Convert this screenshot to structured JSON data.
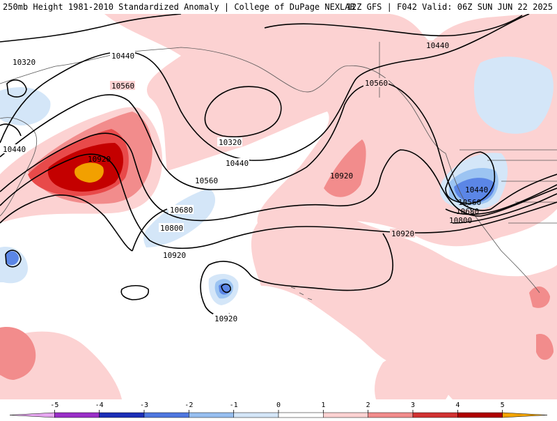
{
  "header": {
    "left_title": "250mb Height 1981-2010 Standardized Anomaly | College of DuPage NEXLAB",
    "right_title": "12Z GFS | F042 Valid: 06Z SUN JUN 22 2025"
  },
  "colors": {
    "ocean_neutral": "#ffffff",
    "pos1": "#fcd2d2",
    "pos2": "#f78a8a",
    "pos3": "#e84a4a",
    "pos4": "#c40000",
    "pos5": "#f2a000",
    "neg1": "#cde3f7",
    "neg2": "#9cc4f2",
    "neg3": "#5b86e6",
    "neg4": "#2140c8",
    "neg5": "#7a16b8",
    "contour": "#000000",
    "coast": "#444444"
  },
  "contour_labels": [
    {
      "name": "label-10320-nw",
      "text": "10320"
    },
    {
      "name": "label-10440-nw-top",
      "text": "10440"
    },
    {
      "name": "label-10440-nw-left",
      "text": "10440"
    },
    {
      "name": "label-10560-nw",
      "text": "10560"
    },
    {
      "name": "label-10920-jet",
      "text": "10920"
    },
    {
      "name": "label-10320-center",
      "text": "10320"
    },
    {
      "name": "label-10440-center",
      "text": "10440"
    },
    {
      "name": "label-10560-center",
      "text": "10560"
    },
    {
      "name": "label-10680-center",
      "text": "10680"
    },
    {
      "name": "label-10800-center",
      "text": "10800"
    },
    {
      "name": "label-10920-center",
      "text": "10920"
    },
    {
      "name": "label-10920-south",
      "text": "10920"
    },
    {
      "name": "label-10920-mid",
      "text": "10920"
    },
    {
      "name": "label-10560-ne",
      "text": "10560"
    },
    {
      "name": "label-10440-ne",
      "text": "10440"
    },
    {
      "name": "label-10920-east",
      "text": "10920"
    },
    {
      "name": "label-10440-low",
      "text": "10440"
    },
    {
      "name": "label-10560-low",
      "text": "10560"
    },
    {
      "name": "label-10680-low",
      "text": "10680"
    },
    {
      "name": "label-10800-low",
      "text": "10800"
    }
  ],
  "colorbar": {
    "ticks": [
      "-5",
      "-4",
      "-3",
      "-2",
      "-1",
      "0",
      "1",
      "2",
      "3",
      "4",
      "5"
    ],
    "segments": [
      {
        "from": -6,
        "to": -5,
        "color": "#e6a6f0"
      },
      {
        "from": -5,
        "to": -4,
        "color": "#9a2fc8"
      },
      {
        "from": -4,
        "to": -3,
        "color": "#1c2fb8"
      },
      {
        "from": -3,
        "to": -2,
        "color": "#4f78e0"
      },
      {
        "from": -2,
        "to": -1,
        "color": "#97bff0"
      },
      {
        "from": -1,
        "to": 0,
        "color": "#d4e6f8"
      },
      {
        "from": 0,
        "to": 1,
        "color": "#ffffff"
      },
      {
        "from": 1,
        "to": 2,
        "color": "#fcd2d2"
      },
      {
        "from": 2,
        "to": 3,
        "color": "#f28c8c"
      },
      {
        "from": 3,
        "to": 4,
        "color": "#d23232"
      },
      {
        "from": 4,
        "to": 5,
        "color": "#b00000"
      },
      {
        "from": 5,
        "to": 6,
        "color": "#f3a400"
      }
    ]
  }
}
